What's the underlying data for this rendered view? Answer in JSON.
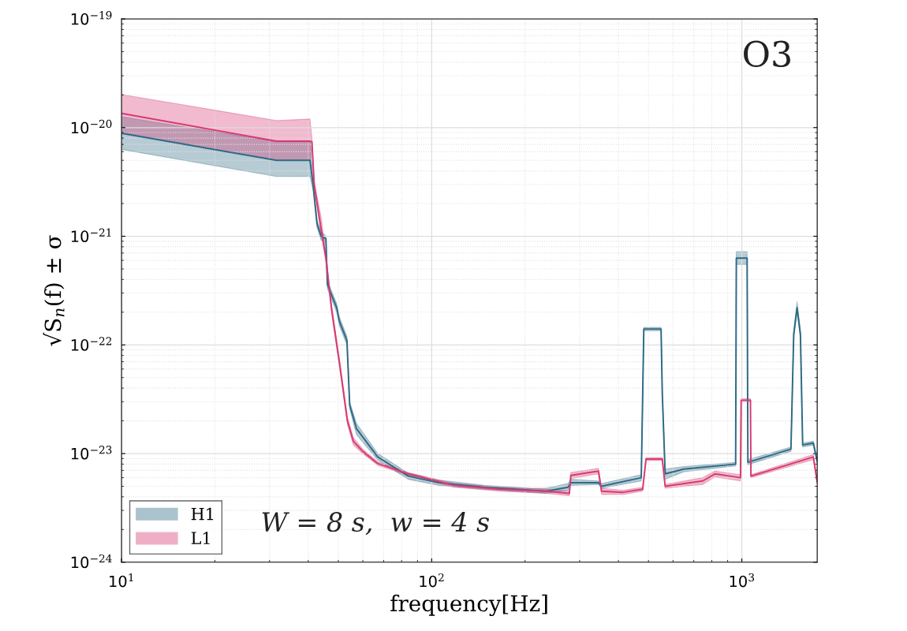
{
  "chart_data": {
    "type": "line",
    "xlabel": "frequency[Hz]",
    "ylabel": "√S$_{n}$(f) ± σ",
    "log": "xy",
    "grid": true,
    "legend": "bottom left",
    "line_style": "solid",
    "xlim": [
      10,
      1750
    ],
    "xticks": [
      {
        "value": 10,
        "label": "10$^{1}$"
      },
      {
        "value": 100,
        "label": "10$^{2}$"
      },
      {
        "value": 1000,
        "label": "10$^{3}$"
      }
    ],
    "ylim": [
      1e-24,
      1e-19
    ],
    "yticks": [
      {
        "value": 1e-24,
        "label": "10$^{−24}$"
      },
      {
        "value": 1e-23,
        "label": "10$^{−23}$"
      },
      {
        "value": 1e-22,
        "label": "10$^{−22}$"
      },
      {
        "value": 1e-21,
        "label": "10$^{−21}$"
      },
      {
        "value": 1e-20,
        "label": "10$^{−20}$"
      },
      {
        "value": 1e-19,
        "label": "10$^{−19}$"
      }
    ],
    "annotations": [
      "O3",
      "W = 8 s,  w = 4 s"
    ],
    "series": [
      {
        "name": "H1",
        "color": "#2e6a85",
        "x": [
          10,
          31.6,
          40.5,
          41.5,
          42.7,
          44.0,
          45.6,
          46.1,
          49.4,
          50.4,
          53.3,
          54.4,
          57.2,
          67,
          84,
          105,
          148,
          208,
          234,
          275,
          281,
          345,
          353,
          474,
          483,
          549,
          554,
          566,
          650,
          955,
          960,
          1040,
          1046,
          1440,
          1470,
          1507,
          1545,
          1571,
          1700,
          1750
        ],
        "values": [
          8.85e-21,
          5e-21,
          5e-21,
          2.9e-21,
          1.3e-21,
          1e-21,
          9.5e-22,
          3.6e-22,
          2.2e-22,
          1.65e-22,
          1.1e-22,
          2.8e-23,
          1.7e-23,
          9.3e-24,
          6.2e-24,
          5.4e-24,
          4.9e-24,
          4.6e-24,
          4.5e-24,
          4.9e-24,
          5.4e-24,
          5.4e-24,
          5e-24,
          6e-24,
          1.4e-22,
          1.4e-22,
          3.6e-23,
          6.5e-24,
          7.2e-24,
          8e-24,
          6.3e-22,
          6.3e-22,
          8.3e-24,
          1.1e-23,
          1.25e-22,
          2.2e-22,
          1.25e-22,
          1.2e-23,
          1.25e-23,
          8.5e-24
        ],
        "lower": [
          6.3e-21,
          3.55e-21,
          3.55e-21,
          2.6e-21,
          1.2e-21,
          9.2e-22,
          8.8e-22,
          3.3e-22,
          2e-22,
          1.5e-22,
          1e-22,
          2.6e-23,
          1.5e-23,
          8.7e-24,
          5.8e-24,
          5.1e-24,
          4.7e-24,
          4.4e-24,
          4.3e-24,
          4.6e-24,
          5.1e-24,
          5.2e-24,
          4.8e-24,
          5.6e-24,
          1.35e-22,
          1.35e-22,
          3.4e-23,
          5.8e-24,
          6.8e-24,
          7.7e-24,
          5.5e-22,
          5.5e-22,
          7.9e-24,
          1.05e-23,
          1.15e-22,
          2e-22,
          1.15e-22,
          1.15e-23,
          1.2e-23,
          8.2e-24
        ],
        "upper": [
          1.26e-20,
          7.4e-21,
          7.4e-21,
          3.2e-21,
          1.4e-21,
          1.1e-21,
          1e-21,
          3.9e-22,
          2.4e-22,
          1.8e-22,
          1.2e-22,
          3e-23,
          1.9e-23,
          1e-23,
          6.6e-24,
          5.7e-24,
          5.1e-24,
          4.8e-24,
          4.8e-24,
          5.3e-24,
          5.8e-24,
          5.6e-24,
          5.3e-24,
          6.4e-24,
          1.45e-22,
          1.45e-22,
          3.8e-23,
          7.2e-24,
          7.6e-24,
          8.3e-24,
          7.2e-22,
          7.2e-22,
          8.8e-24,
          1.15e-23,
          1.35e-22,
          2.5e-22,
          1.35e-22,
          1.25e-23,
          1.3e-23,
          8.8e-24
        ]
      },
      {
        "name": "L1",
        "color": "#d63a72",
        "x": [
          10,
          31.6,
          40.5,
          41.1,
          41.8,
          44,
          45.6,
          47.5,
          50.4,
          53.5,
          55.9,
          59.9,
          67,
          84,
          118,
          166,
          234,
          278,
          281,
          345,
          353,
          414,
          479,
          491,
          554,
          566,
          748,
          819,
          990,
          995,
          1066,
          1070,
          1700,
          1750
        ],
        "values": [
          1.35e-20,
          7.5e-21,
          7.5e-21,
          7.4e-21,
          3e-21,
          1.17e-21,
          6.3e-22,
          2.2e-22,
          6.9e-23,
          2e-23,
          1.3e-23,
          1.05e-23,
          8.1e-24,
          6.5e-24,
          5.1e-24,
          4.7e-24,
          4.5e-24,
          4.3e-24,
          6.3e-24,
          6.9e-24,
          4.5e-24,
          4.4e-24,
          4.7e-24,
          8.9e-24,
          8.9e-24,
          5e-24,
          5.6e-24,
          6.5e-24,
          6e-24,
          3.1e-23,
          3.1e-23,
          6.2e-24,
          9.3e-24,
          5.5e-24
        ],
        "lower": [
          9e-21,
          5e-21,
          5e-21,
          6.8e-21,
          2.8e-21,
          1.05e-21,
          5.8e-22,
          2e-22,
          6.3e-23,
          1.85e-23,
          1.2e-23,
          1e-23,
          7.8e-24,
          6.3e-24,
          4.9e-24,
          4.5e-24,
          4.3e-24,
          4.1e-24,
          5.9e-24,
          6.5e-24,
          4.2e-24,
          4.2e-24,
          4.5e-24,
          8.6e-24,
          8.6e-24,
          4.8e-24,
          5.2e-24,
          6.1e-24,
          5.6e-24,
          3e-23,
          3e-23,
          6e-24,
          8.8e-24,
          5.3e-24
        ],
        "upper": [
          2.02e-20,
          1.16e-20,
          1.2e-20,
          8e-21,
          3.2e-21,
          1.5e-21,
          6.8e-22,
          2.4e-22,
          7.5e-23,
          2.15e-23,
          1.4e-23,
          1.1e-23,
          8.4e-24,
          6.7e-24,
          5.3e-24,
          4.9e-24,
          4.7e-24,
          4.5e-24,
          6.7e-24,
          7.3e-24,
          4.8e-24,
          4.6e-24,
          4.9e-24,
          9.2e-24,
          9.2e-24,
          5.2e-24,
          6e-24,
          6.9e-24,
          6.4e-24,
          3.2e-23,
          3.2e-23,
          6.4e-24,
          9.8e-24,
          5.7e-24
        ]
      }
    ]
  }
}
